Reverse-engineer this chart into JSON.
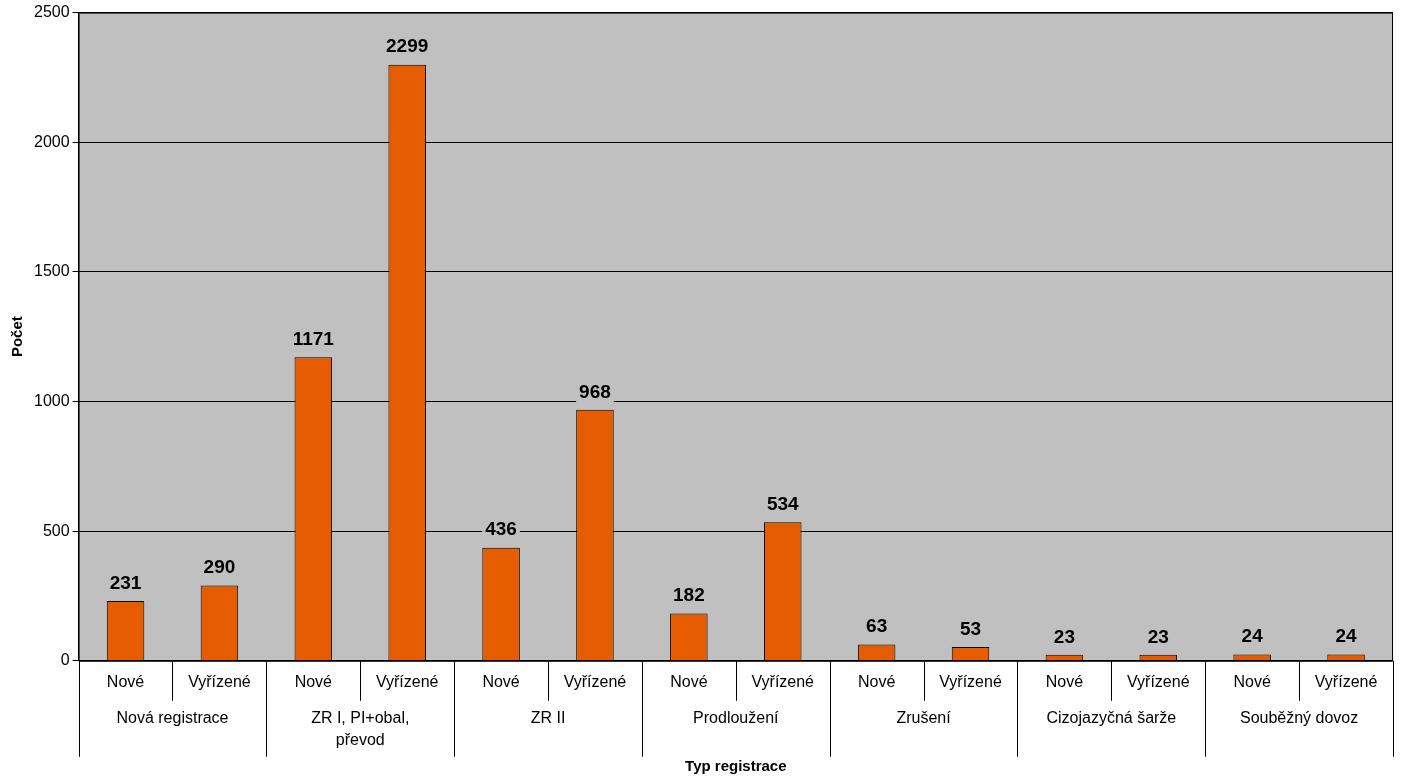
{
  "chart_data": {
    "type": "bar",
    "xlabel": "Typ registrace",
    "ylabel": "Počet",
    "categories": [
      "Nové",
      "Vyřízené",
      "Nové",
      "Vyřízené",
      "Nové",
      "Vyřízené",
      "Nové",
      "Vyřízené",
      "Nové",
      "Vyřízené",
      "Nové",
      "Vyřízené",
      "Nové",
      "Vyřízené"
    ],
    "values": [
      231,
      290,
      1171,
      2299,
      436,
      968,
      182,
      534,
      63,
      53,
      23,
      23,
      24,
      24
    ],
    "color": "#e65c00",
    "ylim": [
      0,
      2500
    ],
    "yticks": [
      0,
      500,
      1000,
      1500,
      2000,
      2500
    ],
    "grid": "y",
    "legend": false,
    "data_labels": true,
    "annotations": [
      "Nová registrace",
      "ZR I, PI+obal, převod",
      "ZR II",
      "Prodloužení",
      "Zrušení",
      "Cizojazyčná šarže",
      "Souběžný dovoz"
    ]
  }
}
